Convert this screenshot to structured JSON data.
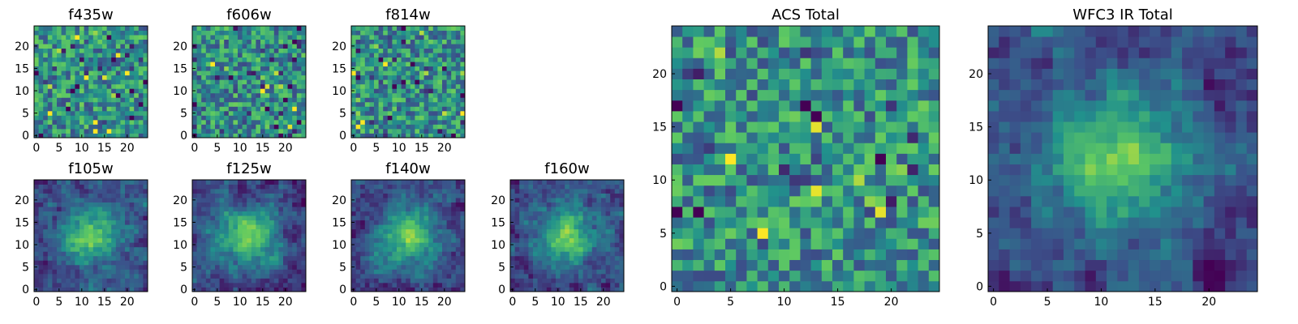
{
  "chart_data": [
    {
      "type": "heatmap",
      "title": "f435w",
      "xlim": [
        0,
        24
      ],
      "ylim": [
        0,
        24
      ],
      "xticks": [
        "0",
        "5",
        "10",
        "15",
        "20"
      ],
      "yticks": [
        "0",
        "5",
        "10",
        "15",
        "20"
      ],
      "grid_size": [
        25,
        25
      ],
      "pattern": "noise",
      "seed": 11
    },
    {
      "type": "heatmap",
      "title": "f606w",
      "xlim": [
        0,
        24
      ],
      "ylim": [
        0,
        24
      ],
      "xticks": [
        "0",
        "5",
        "10",
        "15",
        "20"
      ],
      "yticks": [
        "0",
        "5",
        "10",
        "15",
        "20"
      ],
      "grid_size": [
        25,
        25
      ],
      "pattern": "noise",
      "seed": 23
    },
    {
      "type": "heatmap",
      "title": "f814w",
      "xlim": [
        0,
        24
      ],
      "ylim": [
        0,
        24
      ],
      "xticks": [
        "0",
        "5",
        "10",
        "15",
        "20"
      ],
      "yticks": [
        "0",
        "5",
        "10",
        "15",
        "20"
      ],
      "grid_size": [
        25,
        25
      ],
      "pattern": "noise",
      "seed": 37
    },
    {
      "type": "heatmap",
      "title": "f105w",
      "xlim": [
        0,
        24
      ],
      "ylim": [
        0,
        24
      ],
      "xticks": [
        "0",
        "5",
        "10",
        "15",
        "20"
      ],
      "yticks": [
        "0",
        "5",
        "10",
        "15",
        "20"
      ],
      "grid_size": [
        25,
        25
      ],
      "pattern": "blob",
      "seed": 41
    },
    {
      "type": "heatmap",
      "title": "f125w",
      "xlim": [
        0,
        24
      ],
      "ylim": [
        0,
        24
      ],
      "xticks": [
        "0",
        "5",
        "10",
        "15",
        "20"
      ],
      "yticks": [
        "0",
        "5",
        "10",
        "15",
        "20"
      ],
      "grid_size": [
        25,
        25
      ],
      "pattern": "blob",
      "seed": 53
    },
    {
      "type": "heatmap",
      "title": "f140w",
      "xlim": [
        0,
        24
      ],
      "ylim": [
        0,
        24
      ],
      "xticks": [
        "0",
        "5",
        "10",
        "15",
        "20"
      ],
      "yticks": [
        "0",
        "5",
        "10",
        "15",
        "20"
      ],
      "grid_size": [
        25,
        25
      ],
      "pattern": "blob",
      "seed": 67
    },
    {
      "type": "heatmap",
      "title": "f160w",
      "xlim": [
        0,
        24
      ],
      "ylim": [
        0,
        24
      ],
      "xticks": [
        "0",
        "5",
        "10",
        "15",
        "20"
      ],
      "yticks": [
        "0",
        "5",
        "10",
        "15",
        "20"
      ],
      "grid_size": [
        25,
        25
      ],
      "pattern": "blob",
      "seed": 79
    },
    {
      "type": "heatmap",
      "title": "ACS Total",
      "xlim": [
        0,
        24
      ],
      "ylim": [
        0,
        24
      ],
      "xticks": [
        "0",
        "5",
        "10",
        "15",
        "20"
      ],
      "yticks": [
        "0",
        "5",
        "10",
        "15",
        "20"
      ],
      "grid_size": [
        25,
        25
      ],
      "pattern": "noise",
      "seed": 97
    },
    {
      "type": "heatmap",
      "title": "WFC3 IR Total",
      "xlim": [
        0,
        24
      ],
      "ylim": [
        0,
        24
      ],
      "xticks": [
        "0",
        "5",
        "10",
        "15",
        "20"
      ],
      "yticks": [
        "0",
        "5",
        "10",
        "15",
        "20"
      ],
      "grid_size": [
        25,
        25
      ],
      "pattern": "blob",
      "seed": 131
    }
  ]
}
